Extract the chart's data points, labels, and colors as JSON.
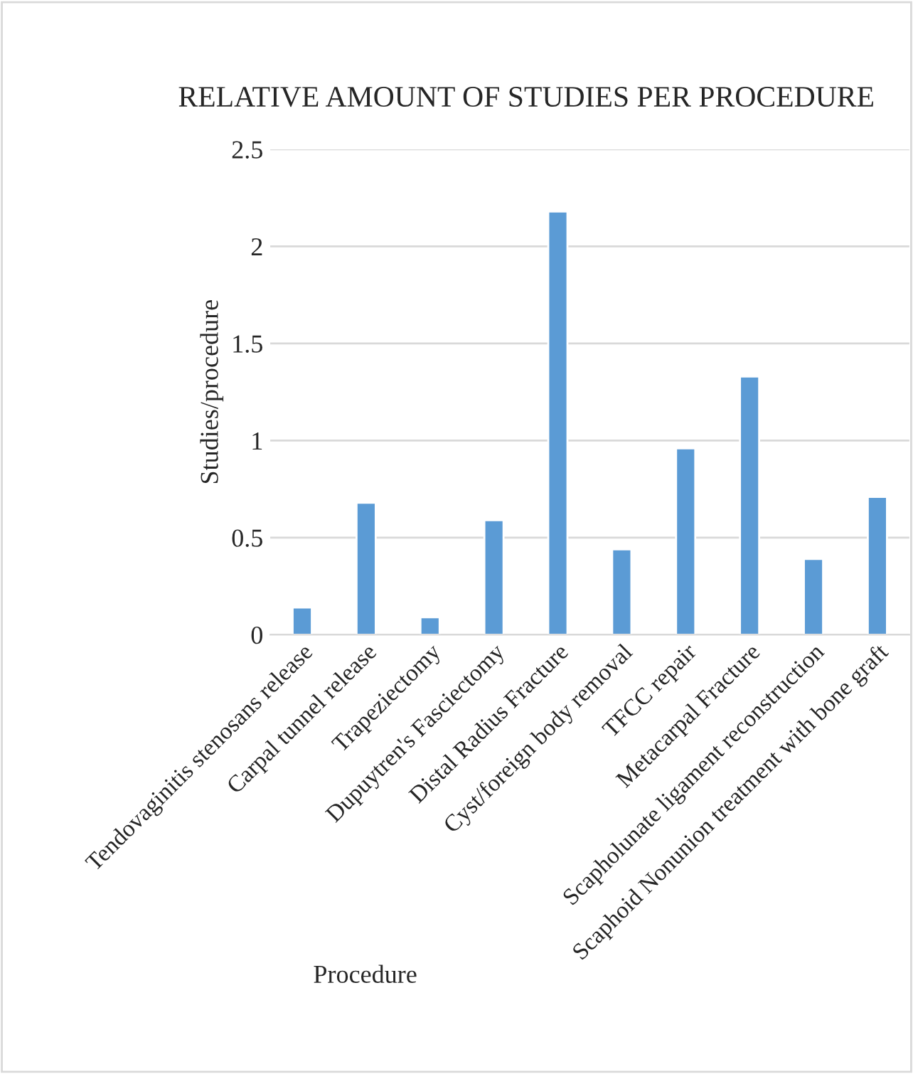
{
  "chart_data": {
    "type": "bar",
    "title": "RELATIVE AMOUNT OF STUDIES PER PROCEDURE",
    "xlabel": "Procedure",
    "ylabel": "Studies/procedure",
    "categories": [
      "Tendovaginitis stenosans release",
      "Carpal tunnel release",
      "Trapeziectomy",
      "Dupuytren's Fasciectomy",
      "Distal Radius Fracture",
      "Cyst/foreign body removal",
      "TFCC repair",
      "Metacarpal Fracture",
      "Scapholunate ligament reconstruction",
      "Scaphoid Nonunion treatment with bone graft"
    ],
    "values": [
      0.14,
      0.68,
      0.09,
      0.59,
      2.18,
      0.44,
      0.96,
      1.33,
      0.39,
      0.71
    ],
    "color": "#5b9bd5",
    "ylim": [
      0,
      2.5
    ],
    "yticks": [
      0,
      0.5,
      1,
      1.5,
      2,
      2.5
    ],
    "grid": "y",
    "legend": false
  }
}
